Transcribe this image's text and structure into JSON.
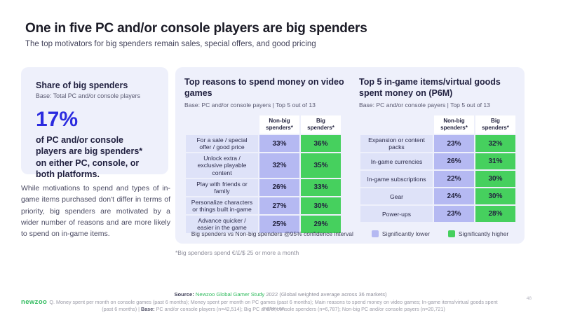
{
  "slide": {
    "title": "One in five PC and/or console players are big spenders",
    "subtitle": "The top motivators for big spenders remain sales, special offers, and good pricing",
    "page_number": "48"
  },
  "highlight_card": {
    "title": "Share of big spenders",
    "base": "Base: Total PC and/or console players",
    "stat": "17%",
    "description": "of PC and/or console players are big spenders* on either PC, console, or both platforms."
  },
  "commentary": "While motivations to spend and types of in-game items purchased don't differ in terms of priority, big spenders are motivated by a wider number of reasons and are more likely to spend on in-game items.",
  "reasons_table": {
    "title": "Top reasons to spend money on video games",
    "base": "Base: PC and/or console payers | Top 5 out of 13",
    "columns": [
      "Non-big spenders*",
      "Big spenders*"
    ],
    "rows": [
      {
        "label": "For a sale / special offer / good price",
        "non_big": "33%",
        "big": "36%"
      },
      {
        "label": "Unlock extra / exclusive playable content",
        "non_big": "32%",
        "big": "35%"
      },
      {
        "label": "Play with friends or family",
        "non_big": "26%",
        "big": "33%"
      },
      {
        "label": "Personalize characters or things built in-game",
        "non_big": "27%",
        "big": "30%"
      },
      {
        "label": "Advance quicker / easier in the game",
        "non_big": "25%",
        "big": "29%"
      }
    ]
  },
  "items_table": {
    "title": "Top 5 in-game items/virtual goods spent money on (P6M)",
    "base": "Base: PC and/or console payers | Top 5 out of 13",
    "columns": [
      "Non-big spenders*",
      "Big spenders*"
    ],
    "rows": [
      {
        "label": "Expansion or content packs",
        "non_big": "23%",
        "big": "32%"
      },
      {
        "label": "In-game currencies",
        "non_big": "26%",
        "big": "31%"
      },
      {
        "label": "In-game subscriptions",
        "non_big": "22%",
        "big": "30%"
      },
      {
        "label": "Gear",
        "non_big": "24%",
        "big": "30%"
      },
      {
        "label": "Power-ups",
        "non_big": "23%",
        "big": "28%"
      }
    ]
  },
  "legend": {
    "note": "Big spenders vs Non-big spenders @95% confidence interval",
    "lower_label": "Significantly lower",
    "higher_label": "Significantly higher"
  },
  "footnote": "*Big spenders spend €/£/$ 25 or more a month",
  "footer": {
    "logo": "newzoo",
    "source_label": "Source:",
    "source_link": "Newzoo Global Gamer Study",
    "source_rest": "2022 (Global weighted average across 36 markets)",
    "line1": "Q. Money spent per month on console games (past 6 months); Money spent per month on PC games (past 6 months); Main reasons to spend money on video games; In-game items/virtual goods spent money on",
    "line2_pre": "(past 6 months)  |  ",
    "base_label": "Base:",
    "line2_rest": " PC and/or console players (n=42,514); Big PC and/or console spenders (n=6,787); Non-big PC and/or console payers (n=20,721)"
  },
  "colors": {
    "panel_background": "#eef0fb",
    "label_cell": "#dee2f8",
    "non_big_cell": "#b5b9f2",
    "big_cell_green": "#46d05e",
    "stat_blue": "#2b2bdf",
    "brand_green": "#2fbb5d",
    "dark_text": "#212140"
  }
}
